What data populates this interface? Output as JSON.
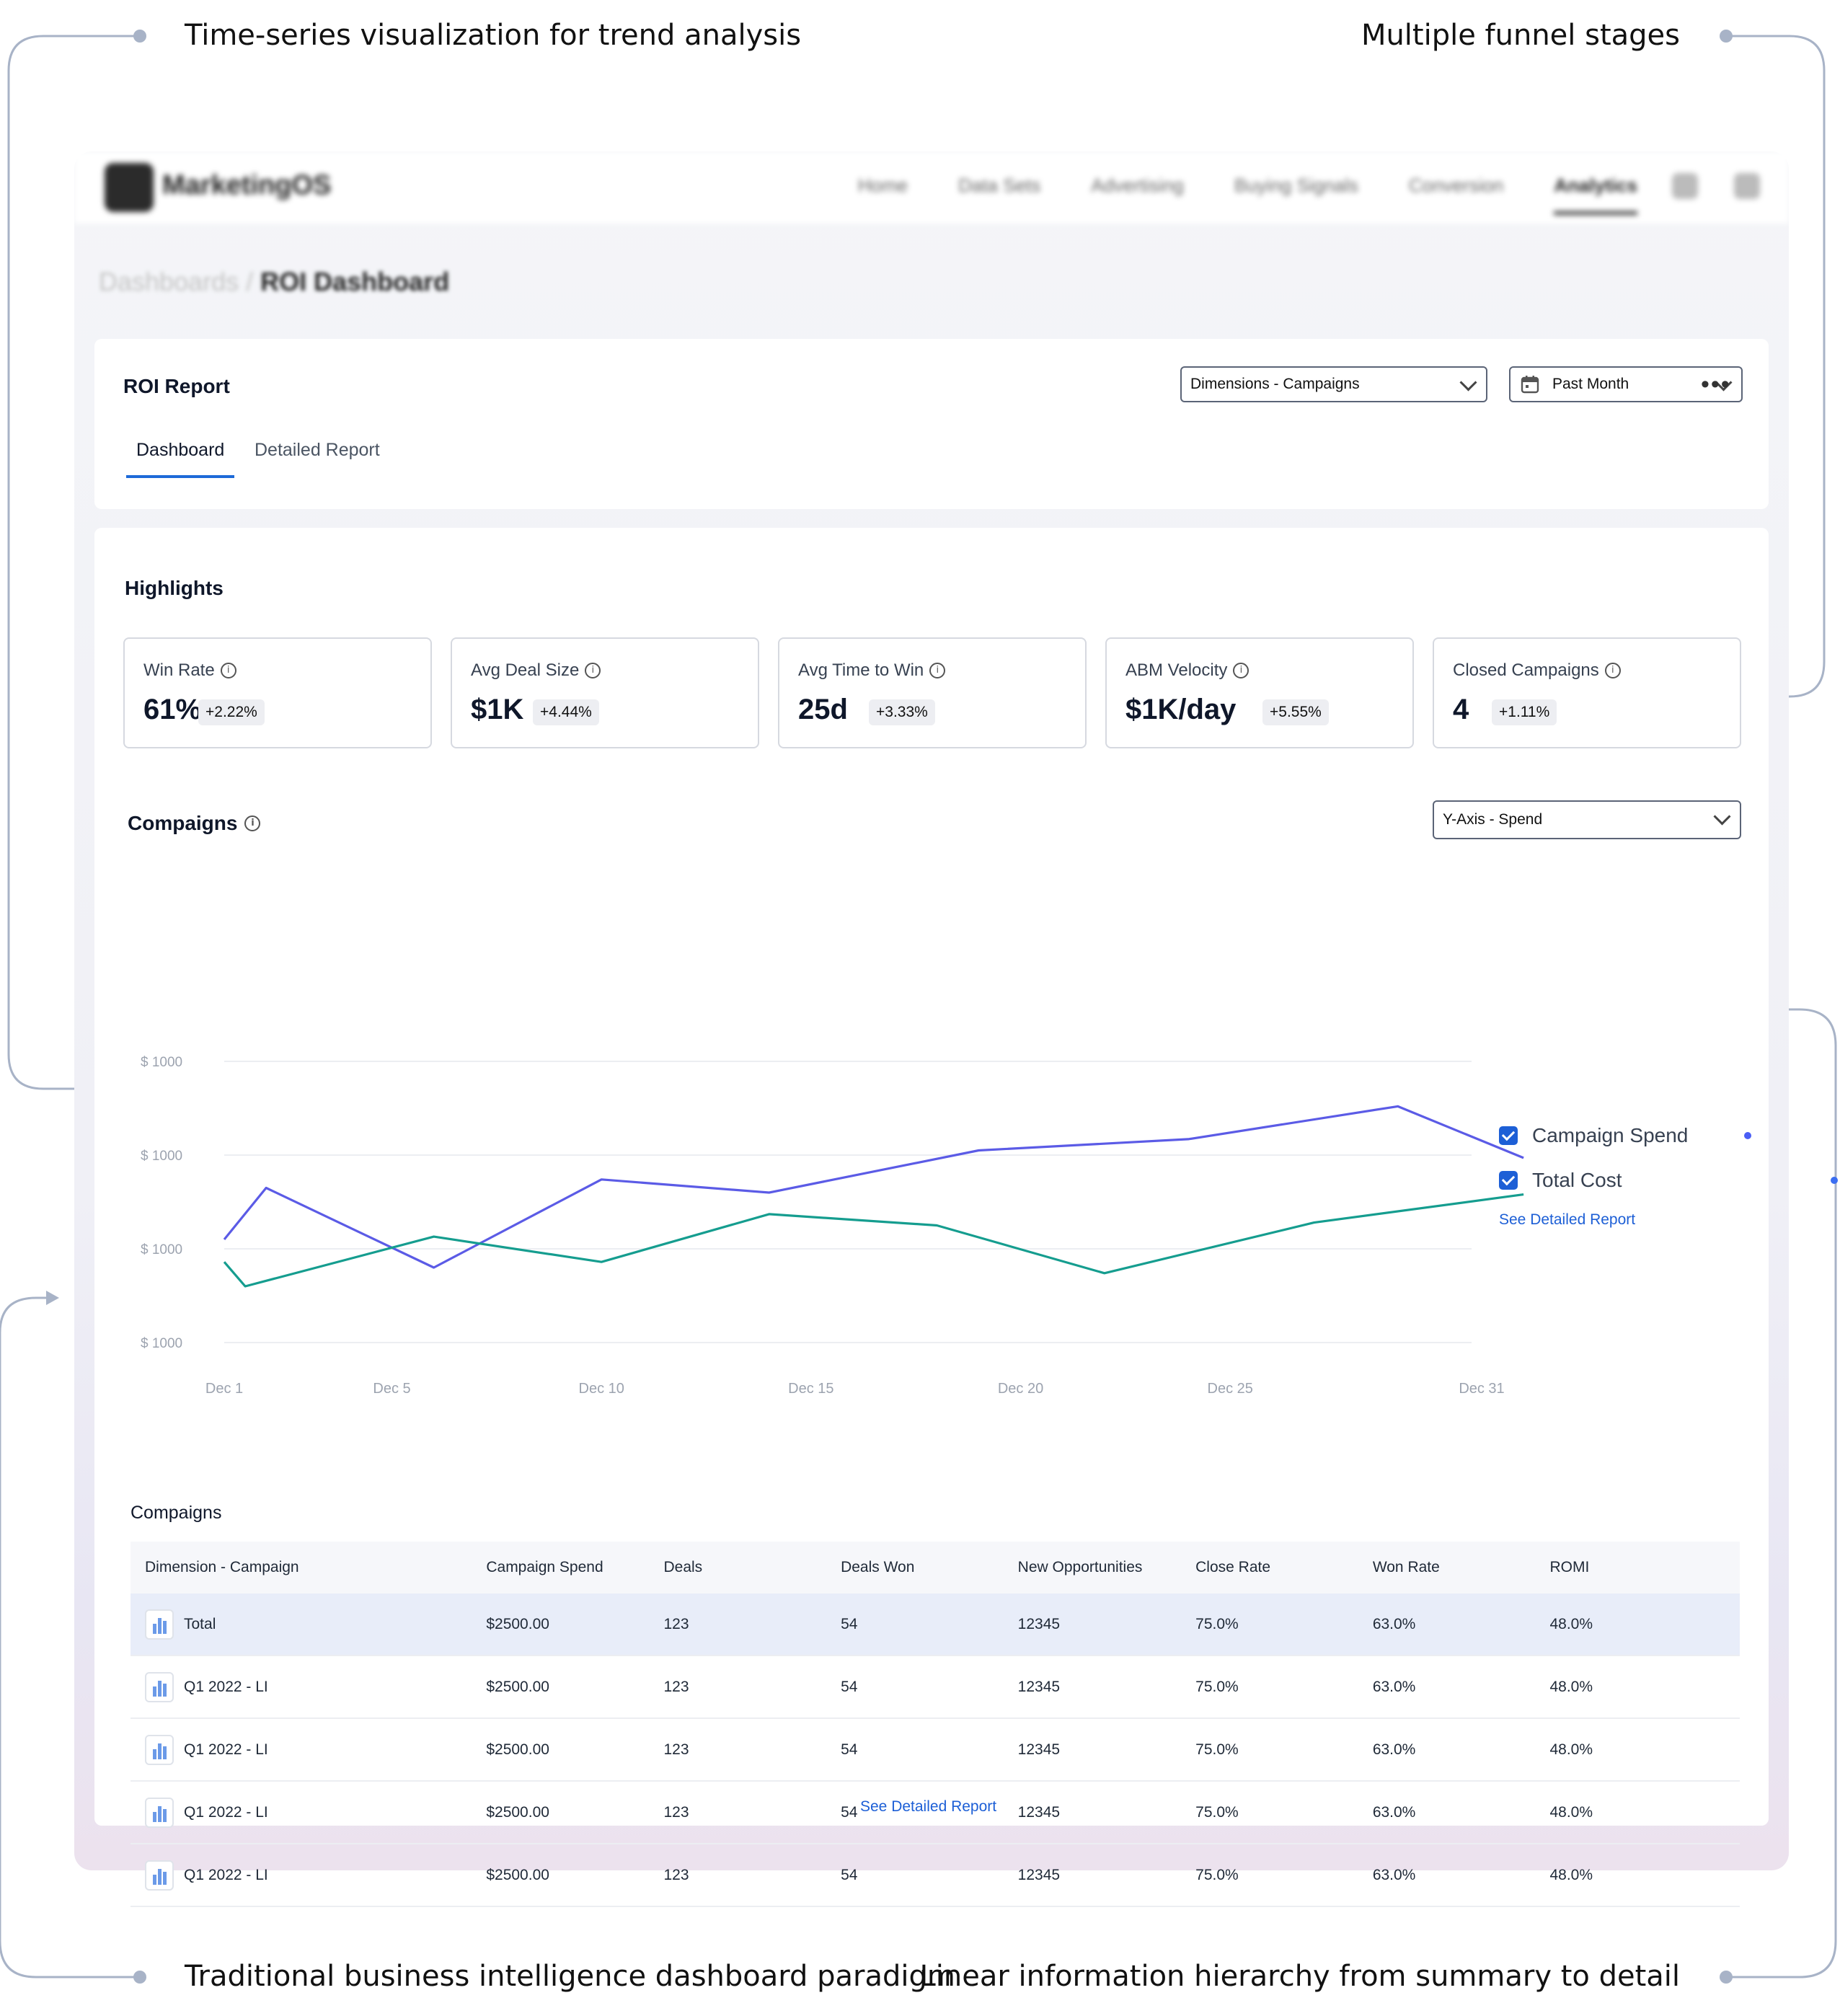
{
  "annotations": {
    "top_left": "Time-series visualization for trend analysis",
    "top_right": "Multiple funnel stages",
    "bottom_left": "Traditional business intelligence dashboard paradigm",
    "bottom_right": "Linear information hierarchy from summary to detail"
  },
  "navbar": {
    "logo": "MarketingOS",
    "items": [
      "Home",
      "Data Sets",
      "Advertising",
      "Buying Signals",
      "Conversion",
      "Analytics"
    ],
    "active": "Analytics"
  },
  "breadcrumb": {
    "parent": "Dashboards",
    "current": "ROI Dashboard"
  },
  "report": {
    "title": "ROI Report",
    "dimension_select": "Dimensions - Campaigns",
    "period_select": "Past Month",
    "more_label": "•••",
    "tabs": [
      "Dashboard",
      "Detailed Report"
    ]
  },
  "highlights": {
    "title": "Highlights",
    "kpis": [
      {
        "label": "Win Rate",
        "value": "61%",
        "delta": "+2.22%"
      },
      {
        "label": "Avg Deal Size",
        "value": "$1K",
        "delta": "+4.44%"
      },
      {
        "label": "Avg Time to Win",
        "value": "25d",
        "delta": "+3.33%"
      },
      {
        "label": "ABM Velocity",
        "value": "$1K/day",
        "delta": "+5.55%"
      },
      {
        "label": "Closed Campaigns",
        "value": "4",
        "delta": "+1.11%"
      }
    ]
  },
  "campaigns_chart": {
    "title": "Compaigns",
    "yaxis_select": "Y-Axis  - Spend",
    "legend_link": "See Detailed Report"
  },
  "chart_data": {
    "type": "line",
    "title": "",
    "xlabel": "",
    "ylabel": "",
    "y_tick_labels": [
      "$ 1000",
      "$ 1000",
      "$ 1000",
      "$ 1000"
    ],
    "x_tick_labels": [
      "Dec 1",
      "Dec 5",
      "Dec 10",
      "Dec 15",
      "Dec 20",
      "Dec 25",
      "Dec 31"
    ],
    "x_tick_days": [
      1,
      5,
      10,
      15,
      20,
      25,
      31
    ],
    "ylim": [
      0,
      3
    ],
    "grid": true,
    "legend_position": "right",
    "series": [
      {
        "name": "Campaign Spend",
        "color": "#5b5be6",
        "x": [
          1,
          2,
          6,
          10,
          14,
          19,
          24,
          29,
          32
        ],
        "y": [
          1.1,
          1.65,
          0.8,
          1.74,
          1.6,
          2.05,
          2.17,
          2.52,
          1.97
        ]
      },
      {
        "name": "Total Cost",
        "color": "#159d8f",
        "x": [
          1,
          1.5,
          6,
          10,
          14,
          18,
          22,
          27,
          32
        ],
        "y": [
          0.86,
          0.6,
          1.13,
          0.86,
          1.37,
          1.25,
          0.74,
          1.28,
          1.58
        ]
      }
    ]
  },
  "table": {
    "title": "Compaigns",
    "columns": [
      "Dimension - Campaign",
      "Campaign Spend",
      "Deals",
      "Deals Won",
      "New Opportunities",
      "Close Rate",
      "Won Rate",
      "ROMI"
    ],
    "rows": [
      [
        "Total",
        "$2500.00",
        "123",
        "54",
        "12345",
        "75.0%",
        "63.0%",
        "48.0%"
      ],
      [
        "Q1 2022 - LI",
        "$2500.00",
        "123",
        "54",
        "12345",
        "75.0%",
        "63.0%",
        "48.0%"
      ],
      [
        "Q1 2022 - LI",
        "$2500.00",
        "123",
        "54",
        "12345",
        "75.0%",
        "63.0%",
        "48.0%"
      ],
      [
        "Q1 2022 - LI",
        "$2500.00",
        "123",
        "54",
        "12345",
        "75.0%",
        "63.0%",
        "48.0%"
      ],
      [
        "Q1 2022 - LI",
        "$2500.00",
        "123",
        "54",
        "12345",
        "75.0%",
        "63.0%",
        "48.0%"
      ]
    ],
    "link": "See Detailed Report"
  }
}
